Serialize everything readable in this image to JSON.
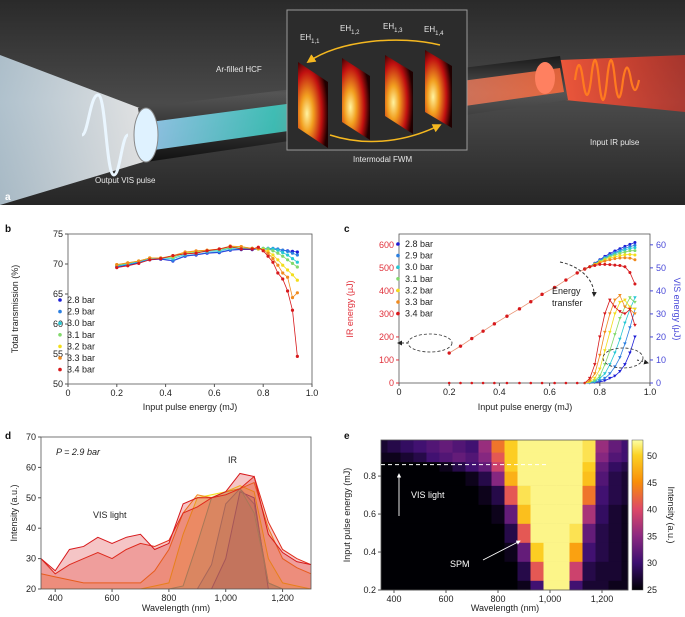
{
  "panel_a": {
    "letter": "a",
    "fiber_label": "Ar-filled HCF",
    "modes": [
      {
        "base": "EH",
        "sub": "1,1"
      },
      {
        "base": "EH",
        "sub": "1,2"
      },
      {
        "base": "EH",
        "sub": "1,3"
      },
      {
        "base": "EH",
        "sub": "1,4"
      }
    ],
    "inset_caption": "Intermodal FWM",
    "input_label": "Input IR pulse",
    "output_label": "Output VIS pulse"
  },
  "chart_data": [
    {
      "panel": "b",
      "type": "line",
      "xlabel": "Input pulse energy (mJ)",
      "ylabel": "Total transmission (%)",
      "xlim": [
        0,
        1.0
      ],
      "ylim": [
        50,
        75
      ],
      "xticks": [
        0,
        0.2,
        0.4,
        0.6,
        0.8,
        1.0
      ],
      "xtick_labels": [
        "0",
        "0.2",
        "0.4",
        "0.6",
        "0.8",
        "1.0"
      ],
      "yticks": [
        50,
        55,
        60,
        65,
        70,
        75
      ],
      "ytick_labels": [
        "50",
        "55",
        "60",
        "65",
        "70",
        "75"
      ],
      "legend_position": "center-left",
      "x": [
        0.2,
        0.245,
        0.29,
        0.335,
        0.38,
        0.43,
        0.48,
        0.525,
        0.57,
        0.62,
        0.665,
        0.71,
        0.755,
        0.78,
        0.8,
        0.82,
        0.84,
        0.86,
        0.88,
        0.9,
        0.92,
        0.94
      ],
      "series": [
        {
          "name": "2.8 bar",
          "color": "#1c1cd6",
          "values": [
            69.5,
            69.8,
            70.2,
            70.7,
            70.8,
            70.5,
            71.3,
            71.5,
            71.8,
            71.9,
            72.3,
            72.4,
            72.4,
            72.5,
            72.5,
            72.5,
            72.5,
            72.4,
            72.3,
            72.2,
            72.1,
            72.0
          ]
        },
        {
          "name": "2.9 bar",
          "color": "#2b7fe0",
          "values": [
            69.6,
            69.9,
            70.3,
            70.8,
            70.9,
            70.6,
            71.4,
            71.6,
            71.9,
            72.0,
            72.4,
            72.5,
            72.5,
            72.5,
            72.5,
            72.6,
            72.6,
            72.5,
            72.3,
            72.1,
            71.8,
            71.5
          ]
        },
        {
          "name": "3.0 bar",
          "color": "#27c8d4",
          "values": [
            69.7,
            70.0,
            70.4,
            70.9,
            71.0,
            70.9,
            71.6,
            71.9,
            72.1,
            72.2,
            72.6,
            72.6,
            72.6,
            72.6,
            72.6,
            72.6,
            72.5,
            72.3,
            71.9,
            71.5,
            70.9,
            70.3
          ]
        },
        {
          "name": "3.1 bar",
          "color": "#82d96c",
          "values": [
            69.8,
            70.1,
            70.5,
            71.0,
            71.0,
            71.1,
            71.8,
            72.0,
            72.2,
            72.4,
            72.7,
            72.8,
            72.6,
            72.6,
            72.6,
            72.5,
            72.2,
            71.8,
            71.3,
            70.7,
            70.1,
            69.5
          ]
        },
        {
          "name": "3.2 bar",
          "color": "#f3de1a",
          "values": [
            69.9,
            70.2,
            70.5,
            71.0,
            71.0,
            71.3,
            71.9,
            72.1,
            72.3,
            72.5,
            72.9,
            72.9,
            72.6,
            72.5,
            72.4,
            72.1,
            71.5,
            70.7,
            69.8,
            69.0,
            68.2,
            67.3
          ]
        },
        {
          "name": "3.3 bar",
          "color": "#f08a1e",
          "values": [
            69.9,
            70.2,
            70.5,
            71.0,
            71.0,
            71.4,
            72.0,
            72.2,
            72.3,
            72.5,
            73.0,
            72.9,
            72.6,
            72.6,
            72.3,
            71.8,
            70.9,
            69.8,
            68.5,
            67.8,
            64.4,
            65.2
          ]
        },
        {
          "name": "3.4 bar",
          "color": "#d7191c",
          "values": [
            69.4,
            69.7,
            70.1,
            70.7,
            70.9,
            71.4,
            71.7,
            71.8,
            72.2,
            72.5,
            72.9,
            72.5,
            72.5,
            72.8,
            72.2,
            71.3,
            70.3,
            68.5,
            67.5,
            65.5,
            62.3,
            54.6
          ]
        }
      ]
    },
    {
      "panel": "c",
      "type": "line",
      "xlabel": "Input pulse energy (mJ)",
      "ylabel": "IR energy (μJ)",
      "ylabel_right": "VIS energy (μJ)",
      "xlim": [
        0,
        1.0
      ],
      "ylim": [
        0,
        647
      ],
      "ylim_right": [
        0,
        64.7
      ],
      "xticks": [
        0,
        0.2,
        0.4,
        0.6,
        0.8,
        1.0
      ],
      "xtick_labels": [
        "0",
        "0.2",
        "0.4",
        "0.6",
        "0.8",
        "1.0"
      ],
      "yticks": [
        0,
        100,
        200,
        300,
        400,
        500,
        600
      ],
      "ytick_labels": [
        "0",
        "100",
        "200",
        "300",
        "400",
        "500",
        "600"
      ],
      "yticks_right": [
        0,
        10,
        20,
        30,
        40,
        50,
        60
      ],
      "ytick_labels_right": [
        "0",
        "10",
        "20",
        "30",
        "40",
        "50",
        "60"
      ],
      "legend_position": "top-left",
      "annotation": [
        "Energy",
        "transfer"
      ],
      "x_shared": [
        0.2,
        0.245,
        0.29,
        0.335,
        0.38,
        0.43,
        0.48,
        0.525,
        0.57,
        0.62,
        0.665,
        0.71,
        0.74
      ],
      "ir_shared": [
        130,
        160,
        193,
        225,
        257,
        290,
        322,
        353,
        385,
        415,
        447,
        478,
        495
      ],
      "x_high": [
        0.76,
        0.78,
        0.8,
        0.82,
        0.84,
        0.86,
        0.88,
        0.9,
        0.92,
        0.94
      ],
      "series": [
        {
          "name": "2.8 bar",
          "color": "#1c1cd6",
          "ir": [
            505,
            520,
            535,
            550,
            562,
            573,
            583,
            593,
            602,
            610
          ],
          "vis": [
            0,
            0.2,
            0.5,
            1,
            2,
            3,
            5,
            8,
            13,
            20
          ]
        },
        {
          "name": "2.9 bar",
          "color": "#2b7fe0",
          "ir": [
            505,
            518,
            532,
            545,
            556,
            566,
            576,
            585,
            592,
            598
          ],
          "vis": [
            0.1,
            0.3,
            1,
            2,
            4,
            7,
            11,
            17,
            24,
            32
          ]
        },
        {
          "name": "3.0 bar",
          "color": "#27c8d4",
          "ir": [
            505,
            517,
            530,
            542,
            552,
            561,
            570,
            578,
            584,
            588
          ],
          "vis": [
            0.2,
            0.6,
            2,
            4,
            8,
            13,
            19,
            26,
            32,
            37
          ]
        },
        {
          "name": "3.1 bar",
          "color": "#82d96c",
          "ir": [
            505,
            516,
            528,
            539,
            548,
            556,
            563,
            569,
            574,
            575
          ],
          "vis": [
            0.3,
            1,
            3,
            8,
            14,
            21,
            28,
            33,
            37,
            35
          ]
        },
        {
          "name": "3.2 bar",
          "color": "#f3de1a",
          "ir": [
            505,
            515,
            525,
            534,
            542,
            548,
            553,
            557,
            558,
            556
          ],
          "vis": [
            0.5,
            2,
            6,
            14,
            22,
            30,
            35,
            36,
            33,
            32
          ]
        },
        {
          "name": "3.3 bar",
          "color": "#f08a1e",
          "ir": [
            505,
            513,
            522,
            529,
            535,
            540,
            543,
            544,
            542,
            535
          ],
          "vis": [
            1,
            4,
            12,
            22,
            30,
            36,
            38,
            33,
            32,
            30
          ]
        },
        {
          "name": "3.4 bar",
          "color": "#d7191c",
          "ir": [
            505,
            510,
            515,
            515,
            514,
            512,
            510,
            505,
            480,
            430
          ],
          "vis": [
            2,
            8,
            20,
            30,
            36,
            33,
            31,
            30,
            32,
            25
          ]
        }
      ]
    },
    {
      "panel": "d",
      "type": "line",
      "xlabel": "Wavelength (nm)",
      "ylabel": "Intensity (a.u.)",
      "xlim": [
        350,
        1300
      ],
      "ylim": [
        20,
        70
      ],
      "xticks": [
        400,
        600,
        800,
        1000,
        1200
      ],
      "xtick_labels": [
        "400",
        "600",
        "800",
        "1,000",
        "1,200"
      ],
      "yticks": [
        20,
        30,
        40,
        50,
        60,
        70
      ],
      "ytick_labels": [
        "20",
        "30",
        "40",
        "50",
        "60",
        "70"
      ],
      "condition": "P = 2.9 bar",
      "annotations": [
        "IR",
        "VIS light"
      ],
      "x": [
        350,
        400,
        450,
        500,
        550,
        600,
        650,
        700,
        750,
        800,
        850,
        900,
        950,
        1000,
        1050,
        1100,
        1150,
        1200,
        1250,
        1300
      ],
      "series": [
        {
          "color": "#1c1cd6",
          "values": [
            20,
            20,
            20,
            20,
            20,
            20,
            20,
            20,
            20,
            20,
            20,
            20,
            20,
            30,
            52,
            50,
            20,
            20,
            20,
            20
          ]
        },
        {
          "color": "#2b7fe0",
          "values": [
            20,
            20,
            20,
            20,
            20,
            20,
            20,
            20,
            20,
            20,
            20,
            20,
            28,
            48,
            53,
            48,
            22,
            20,
            20,
            20
          ]
        },
        {
          "color": "#27c8d4",
          "values": [
            20,
            20,
            20,
            20,
            20,
            20,
            20,
            20,
            20,
            20,
            21,
            35,
            50,
            52,
            53,
            45,
            22,
            20,
            20,
            20
          ]
        },
        {
          "color": "#f3de1a",
          "values": [
            20,
            20,
            20,
            20,
            20,
            20,
            20,
            20,
            21,
            22,
            38,
            50,
            51,
            52,
            54,
            52,
            30,
            22,
            21,
            20
          ]
        },
        {
          "color": "#f08a1e",
          "values": [
            25,
            24,
            23,
            22,
            22,
            22,
            22,
            22,
            26,
            33,
            45,
            51,
            50,
            52,
            53,
            55,
            40,
            30,
            27,
            25
          ]
        },
        {
          "color": "#e0301e",
          "values": [
            30,
            25,
            28,
            30,
            32,
            30,
            33,
            35,
            34,
            36,
            45,
            47,
            50,
            51,
            53,
            57,
            42,
            33,
            30,
            28
          ]
        },
        {
          "color": "#d7191c",
          "values": [
            30,
            26,
            33,
            34,
            37,
            35,
            37,
            38,
            33,
            35,
            48,
            50,
            50,
            52,
            58,
            57,
            38,
            32,
            29,
            28
          ]
        }
      ]
    },
    {
      "panel": "e",
      "type": "heatmap",
      "xlabel": "Wavelength (nm)",
      "ylabel": "Input pulse energy (mJ)",
      "colorbar_label": "Intensity (a.u.)",
      "xlim": [
        350,
        1300
      ],
      "ylim": [
        0.2,
        0.99
      ],
      "clim": [
        25,
        53
      ],
      "xticks": [
        400,
        600,
        800,
        1000,
        1200
      ],
      "xtick_labels": [
        "400",
        "600",
        "800",
        "1,000",
        "1,200"
      ],
      "yticks": [
        0.2,
        0.4,
        0.6,
        0.8
      ],
      "ytick_labels": [
        "0.2",
        "0.4",
        "0.6",
        "0.8"
      ],
      "cticks": [
        25,
        30,
        35,
        40,
        45,
        50
      ],
      "ctick_labels": [
        "25",
        "30",
        "35",
        "40",
        "45",
        "50"
      ],
      "colormap": [
        "#000004",
        "#3b0f70",
        "#8c2981",
        "#de4968",
        "#f98e09",
        "#fcd225",
        "#fcffa4"
      ],
      "annotations": [
        "VIS light",
        "SPM"
      ],
      "marker_energy": 0.86,
      "x": [
        350,
        400,
        450,
        500,
        550,
        600,
        650,
        700,
        750,
        800,
        850,
        900,
        950,
        1000,
        1050,
        1100,
        1150,
        1200,
        1250,
        1300
      ],
      "y": [
        0.2,
        0.3,
        0.4,
        0.5,
        0.6,
        0.7,
        0.8,
        0.85,
        0.9,
        0.95
      ],
      "z": [
        [
          25,
          25,
          25,
          25,
          25,
          25,
          25,
          25,
          25,
          25,
          25,
          26,
          30,
          52,
          52,
          30,
          27,
          27,
          26,
          26
        ],
        [
          25,
          25,
          25,
          25,
          25,
          25,
          25,
          25,
          25,
          25,
          25,
          28,
          40,
          52,
          52,
          38,
          28,
          27,
          27,
          26
        ],
        [
          25,
          25,
          25,
          25,
          25,
          25,
          25,
          25,
          25,
          25,
          26,
          32,
          48,
          52,
          52,
          45,
          30,
          28,
          27,
          26
        ],
        [
          25,
          25,
          25,
          25,
          25,
          25,
          25,
          25,
          25,
          25,
          28,
          40,
          52,
          52,
          52,
          50,
          32,
          28,
          27,
          26
        ],
        [
          25,
          25,
          25,
          25,
          25,
          25,
          25,
          25,
          25,
          26,
          32,
          47,
          52,
          52,
          52,
          52,
          36,
          29,
          27,
          26
        ],
        [
          25,
          25,
          25,
          25,
          25,
          25,
          25,
          25,
          26,
          28,
          40,
          50,
          52,
          52,
          52,
          52,
          42,
          30,
          28,
          27
        ],
        [
          25,
          25,
          25,
          25,
          25,
          25,
          25,
          26,
          28,
          34,
          46,
          52,
          52,
          52,
          52,
          52,
          47,
          31,
          28,
          27
        ],
        [
          25,
          25,
          25,
          25,
          25,
          26,
          28,
          30,
          32,
          38,
          48,
          52,
          52,
          52,
          52,
          52,
          48,
          32,
          29,
          28
        ],
        [
          26,
          26,
          27,
          28,
          30,
          31,
          32,
          31,
          34,
          40,
          48,
          52,
          52,
          52,
          52,
          52,
          50,
          34,
          31,
          30
        ],
        [
          27,
          28,
          29,
          30,
          31,
          32,
          31,
          30,
          35,
          42,
          48,
          52,
          52,
          52,
          52,
          52,
          50,
          35,
          32,
          30
        ]
      ]
    }
  ]
}
